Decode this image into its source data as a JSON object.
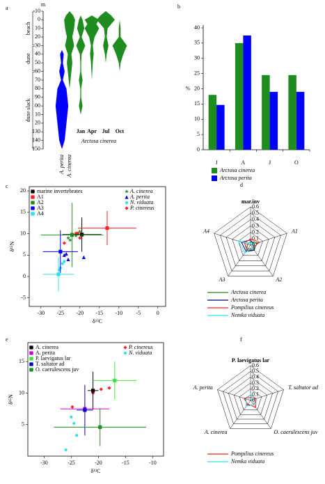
{
  "chart_data": [
    {
      "type": "kite",
      "label": "a",
      "y_unit": "m",
      "ylim": [
        -10,
        150
      ],
      "yticks": [
        -10,
        0,
        10,
        20,
        30,
        40,
        50,
        60,
        70,
        80,
        90,
        {
          "value": 100,
          "label": "00"
        },
        {
          "value": 110,
          "label": "10"
        },
        {
          "value": 120,
          "label": "20"
        },
        130,
        140,
        150
      ],
      "zones": [
        {
          "label": "beach",
          "from": -10,
          "to": 30
        },
        {
          "label": "dune",
          "from": 30,
          "to": 60
        },
        {
          "label": "dune slack",
          "from": 60,
          "to": 150
        }
      ],
      "group_label": "Arctosa cinerea",
      "kites": [
        {
          "label": "A. perita",
          "color": "#0000ff",
          "depth": [
            35,
            40,
            50,
            60,
            70,
            80,
            90,
            100,
            110,
            120,
            130,
            140,
            150
          ],
          "width": [
            0,
            2,
            1,
            3,
            1,
            5,
            6,
            7,
            6,
            5,
            4,
            3,
            0
          ]
        },
        {
          "label": "A. cinerea",
          "color": "#1e8c1e",
          "depth": [
            -10,
            -5,
            0,
            10,
            20,
            30,
            40,
            50,
            60,
            70,
            80
          ],
          "width": [
            0,
            4,
            6,
            5,
            3,
            5,
            2,
            3,
            2,
            1,
            0
          ]
        },
        {
          "label": "Jan",
          "color": "#1e8c1e",
          "depth": [
            -5,
            0,
            10,
            20,
            30,
            40,
            50,
            60,
            70,
            80,
            90,
            100,
            110
          ],
          "width": [
            0,
            2,
            4,
            1,
            5,
            1,
            0.5,
            0.5,
            2,
            0.5,
            0.5,
            2,
            0
          ]
        },
        {
          "label": "Apr",
          "color": "#1e8c1e",
          "depth": [
            -5,
            0,
            5,
            10,
            20,
            30,
            40,
            50,
            60,
            70
          ],
          "width": [
            0,
            8,
            5,
            8,
            3,
            1,
            2,
            1,
            0.5,
            0
          ]
        },
        {
          "label": "Jul",
          "color": "#1e8c1e",
          "depth": [
            -10,
            -5,
            0,
            5,
            10,
            20,
            30,
            40,
            50
          ],
          "width": [
            0,
            6,
            10,
            6,
            2,
            1,
            3,
            1,
            0
          ]
        },
        {
          "label": "Oct",
          "color": "#1e8c1e",
          "depth": [
            0,
            10,
            20,
            30,
            40,
            50,
            60
          ],
          "width": [
            0,
            1,
            1,
            8,
            4,
            1,
            0
          ]
        }
      ]
    },
    {
      "type": "bar",
      "label": "b",
      "ylabel": "%",
      "categories": [
        "J",
        "A",
        "J",
        "O"
      ],
      "series": [
        {
          "name": "Arctosa cinerea",
          "color": "#1e8c1e",
          "values": [
            18,
            35,
            24.5,
            24.5
          ]
        },
        {
          "name": "Arctosa perita",
          "color": "#0000ff",
          "values": [
            14.7,
            37.5,
            19,
            19
          ]
        }
      ],
      "ylim": [
        0,
        40
      ],
      "yticks": [
        0,
        5,
        10,
        15,
        20,
        25,
        30,
        35,
        40
      ]
    },
    {
      "type": "scatter",
      "label": "c",
      "xlabel": "δ¹³C",
      "ylabel": "δ¹⁵N",
      "xlim": [
        -33,
        2
      ],
      "xticks": [
        -30,
        -25,
        -20,
        -15,
        -10,
        -5,
        0
      ],
      "ylim": [
        -7,
        21
      ],
      "yticks": [
        -5,
        0,
        5,
        10,
        15,
        20
      ],
      "series": [
        {
          "name": "marine invertebrates",
          "color": "#000000",
          "x": -19.5,
          "y": 9.8,
          "xerr": 5,
          "yerr": 4
        },
        {
          "name": "A1",
          "color": "#ff2020",
          "x": -13,
          "y": 11.3,
          "xerr": 7.5,
          "yerr": 4
        },
        {
          "name": "A2",
          "color": "#1e8c1e",
          "x": -22,
          "y": 9.7,
          "xerr": 8,
          "yerr": 7.5
        },
        {
          "name": "A3",
          "color": "#0000ff",
          "x": -25,
          "y": 5.8,
          "xerr": 4.5,
          "yerr": 5
        },
        {
          "name": "A4",
          "color": "#30e0f0",
          "x": -25.5,
          "y": 0.5,
          "xerr": 4,
          "yerr": 4
        }
      ],
      "points": [
        {
          "name": "A. cinerea",
          "color": "#1e8c1e",
          "marker": "star",
          "x": [
            -22,
            -21,
            -23,
            -20,
            -22.5
          ],
          "y": [
            10,
            9.5,
            9,
            10.5,
            8.5
          ]
        },
        {
          "name": "A. perita",
          "color": "#0000ff",
          "marker": "triangle",
          "x": [
            -23,
            -24,
            -23.5,
            -19
          ],
          "y": [
            4,
            5,
            5.3,
            4.5
          ]
        },
        {
          "name": "N. viduata",
          "color": "#30e0f0",
          "marker": "circle",
          "x": [
            -25,
            -24.5,
            -25.3,
            -24
          ],
          "y": [
            2,
            3,
            1.5,
            3.5
          ]
        },
        {
          "name": "P. cinereus",
          "color": "#ff2020",
          "marker": "diamond",
          "x": [
            -21,
            -20.5,
            -24,
            -20
          ],
          "y": [
            10.1,
            10.1,
            7.8,
            9
          ]
        }
      ]
    },
    {
      "type": "radar",
      "label": "d",
      "axes": [
        "mar.inv",
        "A1",
        "A2",
        "A3",
        "A4"
      ],
      "rlim": [
        0,
        0.6
      ],
      "rticks": [
        0,
        0.1,
        0.2,
        0.3,
        0.4,
        0.5,
        0.6
      ],
      "series": [
        {
          "name": "Arctosa cinerea",
          "color": "#1e8c1e",
          "values": [
            0.05,
            0.12,
            0.08,
            0.1,
            0.05
          ]
        },
        {
          "name": "Arctosa perita",
          "color": "#000080",
          "values": [
            0.08,
            0.05,
            0.1,
            0.12,
            0.15
          ]
        },
        {
          "name": "Pompilius cinereus",
          "color": "#ff2020",
          "values": [
            0.1,
            0.15,
            0.05,
            0.08,
            0.1
          ]
        },
        {
          "name": "Nemka viduata",
          "color": "#30e0f0",
          "values": [
            0.03,
            0.05,
            0.05,
            0.15,
            0.2
          ]
        }
      ]
    },
    {
      "type": "scatter",
      "label": "e",
      "xlabel": "δ¹³C",
      "ylabel": "δ¹⁵N",
      "xlim": [
        -33,
        -8
      ],
      "xticks": [
        -30,
        -25,
        -20,
        -15,
        -10
      ],
      "ylim": [
        0,
        18
      ],
      "yticks": [
        5,
        10,
        15
      ],
      "series": [
        {
          "name": "A. cinerea",
          "color": "#000000",
          "x": -21,
          "y": 10.4,
          "xerr": 1,
          "yerr": 3
        },
        {
          "name": "A. perita",
          "color": "#d000d0",
          "x": -22.5,
          "y": 7.5,
          "xerr": 4.5,
          "yerr": 0.5
        },
        {
          "name": "P. laevigatus lar",
          "color": "#40e040",
          "x": -17,
          "y": 12,
          "xerr": 4,
          "yerr": 3
        },
        {
          "name": "T. saltator ad",
          "color": "#0000c0",
          "x": -22.5,
          "y": 7.3,
          "xerr": 1.5,
          "yerr": 4
        },
        {
          "name": "O. caerulescens juv",
          "color": "#1e8c1e",
          "x": -19.7,
          "y": 4.6,
          "xerr": 8.5,
          "yerr": 3
        }
      ],
      "points": [
        {
          "name": "P. cinereus",
          "color": "#ff2020",
          "marker": "diamond",
          "x": [
            -24.8,
            -19.5,
            -18,
            -21
          ],
          "y": [
            7.8,
            10.6,
            10.8,
            10
          ]
        },
        {
          "name": "N. viduata",
          "color": "#30e0f0",
          "marker": "circle",
          "x": [
            -25,
            -24.5,
            -26,
            -24
          ],
          "y": [
            6.2,
            5.2,
            1,
            3.3
          ]
        }
      ]
    },
    {
      "type": "radar",
      "label": "f",
      "axes": [
        "P. laevigatus lar",
        "T. saltator ad",
        "O. caerulescens juv",
        "A. cinerea",
        "A. perita"
      ],
      "rlim": [
        0,
        0.6
      ],
      "rticks": [
        0,
        0.1,
        0.2,
        0.3,
        0.4,
        0.5,
        0.6
      ],
      "series": [
        {
          "name": "Pompilius cinereus",
          "color": "#ff2020",
          "values": [
            0.05,
            0.1,
            0.15,
            0.08,
            0.12
          ]
        },
        {
          "name": "Nemka viduata",
          "color": "#30e0f0",
          "values": [
            0.1,
            0.05,
            0.1,
            0.12,
            0.08
          ]
        }
      ]
    }
  ]
}
